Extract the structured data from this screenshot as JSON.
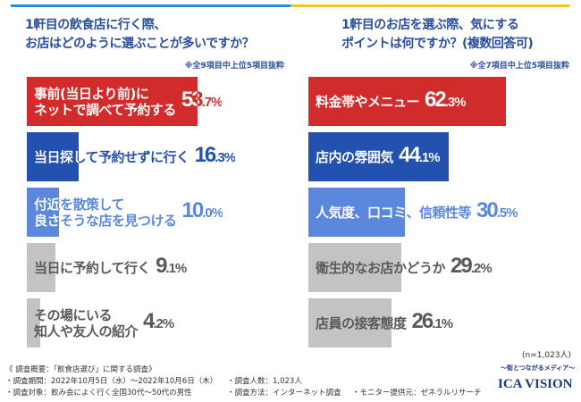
{
  "colors": {
    "red": "#d22b2b",
    "blue": "#2351b0",
    "lightblue": "#5b88dc",
    "gray": "#c3c3c3",
    "graytext": "#5a5a5a"
  },
  "chart_data": [
    {
      "type": "bar",
      "orientation": "horizontal",
      "title": "1軒目の飲食店に行く際、\nお店はどのように選ぶことが多いですか？",
      "note": "※全9項目中上位5項目抜粋",
      "categories": [
        "事前(当日より前)に\nネットで調べて予約する",
        "当日探して予約せずに行く",
        "付近を散策して\n良さそうな店を見つける",
        "当日に予約して行く",
        "その場にいる\n知人や友人の紹介"
      ],
      "values": [
        53.7,
        16.3,
        10.0,
        9.1,
        4.2
      ],
      "unit": "%"
    },
    {
      "type": "bar",
      "orientation": "horizontal",
      "title": "1軒目のお店を選ぶ際、気にする\nポイントは何ですか？(複数回答可)",
      "note": "※全7項目中上位5項目抜粋",
      "categories": [
        "料金帯やメニュー",
        "店内の雰囲気",
        "人気度、口コミ、信頼性等",
        "衛生的なお店かどうか",
        "店員の接客態度"
      ],
      "values": [
        62.3,
        44.1,
        30.5,
        29.2,
        26.1
      ],
      "unit": "%"
    }
  ],
  "n_label": "(n=1,023人)",
  "footer": {
    "heading": "《 調査概要：「飲食店選び」に関する調査》",
    "period": "・調査期間：2022年10月5日（水）～2022年10月6日（木）",
    "target": "・調査対象：飲み会によく行く全国30代～50代の男性",
    "count": "・調査人数：1,023人",
    "method": "・調査方法：インターネット調査",
    "monitor": "・モニター提供元：ゼネラルリサーチ"
  },
  "logo": {
    "tagline": "～街とつながるメディア～",
    "name": "ICA VISION"
  }
}
